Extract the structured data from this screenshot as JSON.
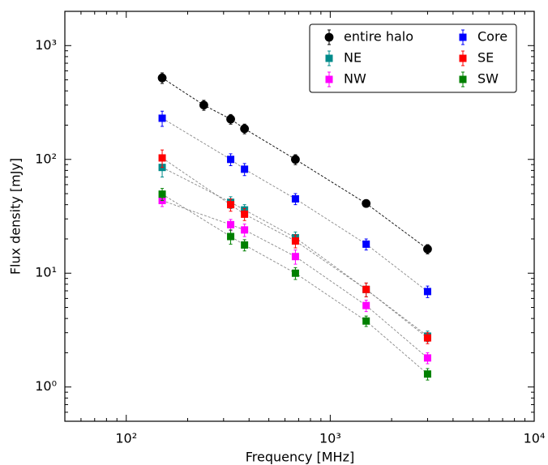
{
  "chart_data": {
    "type": "scatter",
    "xlabel": "Frequency [MHz]",
    "ylabel": "Flux density [mJy]",
    "xscale": "log",
    "yscale": "log",
    "xlim": [
      50,
      10000
    ],
    "ylim": [
      0.5,
      2000
    ],
    "xticks": [
      {
        "value": 100,
        "label": "10²"
      },
      {
        "value": 1000,
        "label": "10³"
      },
      {
        "value": 10000,
        "label": "10⁴"
      }
    ],
    "yticks": [
      {
        "value": 1,
        "label": "10⁰"
      },
      {
        "value": 10,
        "label": "10¹"
      },
      {
        "value": 100,
        "label": "10²"
      },
      {
        "value": 1000,
        "label": "10³"
      }
    ],
    "xminorticks": [
      60,
      70,
      80,
      90,
      200,
      300,
      400,
      500,
      600,
      700,
      800,
      900,
      2000,
      3000,
      4000,
      5000,
      6000,
      7000,
      8000,
      9000
    ],
    "yminorticks": [
      0.6,
      0.7,
      0.8,
      0.9,
      2,
      3,
      4,
      5,
      6,
      7,
      8,
      9,
      20,
      30,
      40,
      50,
      60,
      70,
      80,
      90,
      200,
      300,
      400,
      500,
      600,
      700,
      800,
      900,
      2000
    ],
    "legend": "upper right",
    "series": [
      {
        "name": "entire halo",
        "color": "#000000",
        "marker": "circle",
        "line_color": "#000000",
        "x": [
          150,
          240,
          325,
          380,
          675,
          1500,
          3000
        ],
        "values": [
          520,
          300,
          226,
          186,
          100,
          41,
          16.3
        ],
        "errors": [
          55,
          30,
          22,
          18,
          10,
          3,
          1.5
        ]
      },
      {
        "name": "NE",
        "color": "#008b8b",
        "marker": "square",
        "line_color": "#888888",
        "x": [
          150,
          325,
          380,
          675,
          1500,
          3000
        ],
        "values": [
          85,
          42,
          36,
          20.5,
          7.2,
          2.8
        ],
        "errors": [
          15,
          5,
          4,
          2.5,
          1,
          0.3
        ]
      },
      {
        "name": "NW",
        "color": "#ff00ff",
        "marker": "square",
        "line_color": "#888888",
        "x": [
          150,
          325,
          380,
          675,
          1500,
          3000
        ],
        "values": [
          43.5,
          26.7,
          24,
          14,
          5.2,
          1.8
        ],
        "errors": [
          5,
          3,
          3,
          2,
          0.6,
          0.2
        ]
      },
      {
        "name": "Core",
        "color": "#0000ff",
        "marker": "square",
        "line_color": "#888888",
        "x": [
          150,
          325,
          380,
          675,
          1500,
          3000
        ],
        "values": [
          230,
          100,
          82,
          45,
          18,
          6.9
        ],
        "errors": [
          35,
          12,
          10,
          5,
          2,
          0.8
        ]
      },
      {
        "name": "SE",
        "color": "#ff0000",
        "marker": "square",
        "line_color": "#888888",
        "x": [
          150,
          325,
          380,
          675,
          1500,
          3000
        ],
        "values": [
          103,
          40,
          33,
          19.2,
          7.2,
          2.7
        ],
        "errors": [
          18,
          5,
          4,
          2.5,
          1,
          0.3
        ]
      },
      {
        "name": "SW",
        "color": "#008000",
        "marker": "square",
        "line_color": "#888888",
        "x": [
          150,
          325,
          380,
          675,
          1500,
          3000
        ],
        "values": [
          49.5,
          21,
          17.7,
          10,
          3.8,
          1.3
        ],
        "errors": [
          6,
          3,
          2,
          1.2,
          0.4,
          0.15
        ]
      }
    ]
  }
}
